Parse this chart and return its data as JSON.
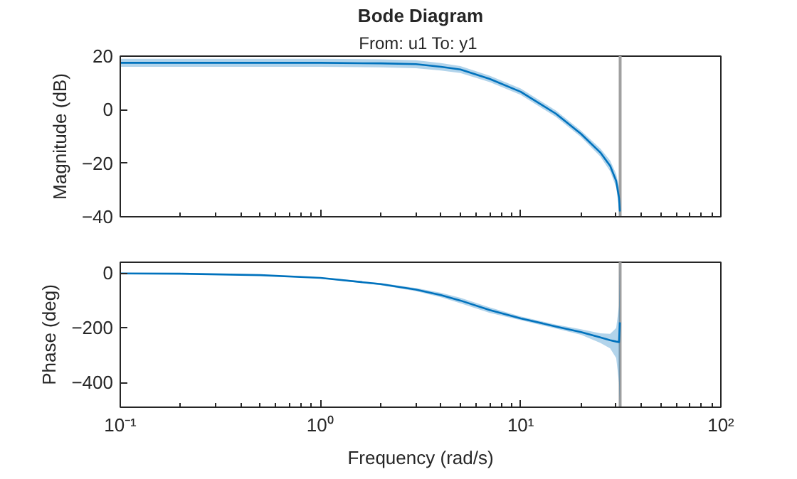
{
  "chart_data": [
    {
      "type": "line",
      "title": "Bode Diagram",
      "subtitle": "From: u1  To: y1",
      "ylabel": "Magnitude (dB)",
      "log": "x",
      "grid": false,
      "tick_labels": "y",
      "xlim": [
        0.1,
        100
      ],
      "xticks": [
        {
          "value": 0.1,
          "label": null
        },
        {
          "value": 1,
          "label": null
        },
        {
          "value": 10,
          "label": null
        },
        {
          "value": 100,
          "label": null
        }
      ],
      "ylim": [
        -40,
        20
      ],
      "yticks": [
        -40,
        -20,
        0,
        20
      ],
      "x": [
        0.1,
        0.2,
        0.5,
        1,
        2,
        3,
        4,
        5,
        7,
        10,
        15,
        20,
        25,
        28,
        30,
        31,
        31.3
      ],
      "series": [
        {
          "color": "#0072bd",
          "values": [
            17.5,
            17.5,
            17.5,
            17.5,
            17.3,
            17,
            16,
            15,
            11.5,
            6.7,
            -1.5,
            -9,
            -16,
            -21,
            -26.6,
            -33,
            -38
          ],
          "lower": [
            16,
            16,
            16,
            16,
            15.8,
            15.5,
            14.6,
            13.7,
            10.3,
            5.5,
            -2.7,
            -10.2,
            -17.5,
            -23,
            -29,
            -37,
            -40
          ],
          "upper": [
            19,
            19,
            19,
            19,
            18.8,
            18.5,
            17.4,
            16.3,
            12.7,
            7.9,
            -0.3,
            -7.8,
            -14.5,
            -19,
            -24,
            -29,
            -34
          ]
        }
      ],
      "ref_lines": [
        {
          "axis": "x",
          "value": 31.4,
          "color": "#a0a0a0"
        }
      ]
    },
    {
      "type": "line",
      "xlabel": "Frequency (rad/s)",
      "ylabel": "Phase (deg)",
      "log": "x",
      "grid": false,
      "xlim": [
        0.1,
        100
      ],
      "xticks": [
        {
          "value": 0.1,
          "label": "10⁻¹"
        },
        {
          "value": 1,
          "label": "10⁰"
        },
        {
          "value": 10,
          "label": "10¹"
        },
        {
          "value": 100,
          "label": "10²"
        }
      ],
      "ylim": [
        -490,
        40
      ],
      "yticks": [
        -400,
        -200,
        0
      ],
      "x": [
        0.1,
        0.2,
        0.5,
        1,
        2,
        3,
        4,
        5,
        7,
        10,
        15,
        20,
        25,
        28,
        30,
        31,
        31.3
      ],
      "series": [
        {
          "color": "#0072bd",
          "values": [
            -1,
            -2,
            -7,
            -17,
            -40,
            -60,
            -80,
            -100,
            -135,
            -165,
            -195,
            -215,
            -235,
            -245,
            -250,
            -252,
            -180
          ],
          "lower": [
            -1,
            -2,
            -8,
            -19,
            -44,
            -66,
            -88,
            -110,
            -145,
            -172,
            -202,
            -225,
            -255,
            -275,
            -310,
            -400,
            -490
          ],
          "upper": [
            -1,
            -2,
            -6,
            -15,
            -36,
            -54,
            -72,
            -90,
            -125,
            -158,
            -188,
            -205,
            -220,
            -222,
            -200,
            -120,
            40
          ]
        }
      ],
      "ref_lines": [
        {
          "axis": "x",
          "value": 31.4,
          "color": "#a0a0a0"
        }
      ]
    }
  ]
}
